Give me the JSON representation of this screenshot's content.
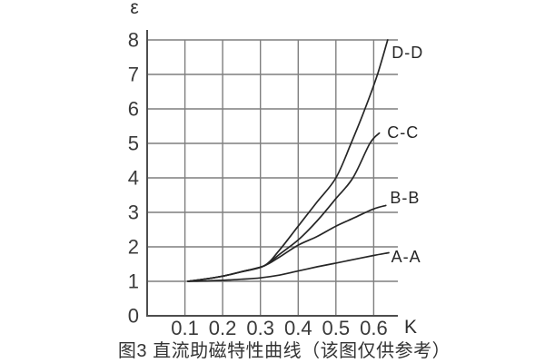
{
  "chart_data": {
    "type": "line",
    "title": "图3 直流助磁特性曲线（该图仅供参考）",
    "xlabel": "K",
    "ylabel": "ε",
    "x_ticks": [
      0.1,
      0.2,
      0.3,
      0.4,
      0.5,
      0.6
    ],
    "y_ticks": [
      0,
      1,
      2,
      3,
      4,
      5,
      6,
      7,
      8
    ],
    "xlim": [
      0,
      0.664
    ],
    "ylim": [
      0,
      8
    ],
    "grid": true,
    "legend_position": "right-of-curve-ends",
    "colors": {
      "background": "#ffffff",
      "grid": "#7f7f7f",
      "axis": "#4d4d4d",
      "curve": "#262626",
      "text": "#3a3a3a"
    },
    "series": [
      {
        "name": "D-D",
        "label_anchor": [
          0.69,
          7.63
        ],
        "points": [
          [
            0.108,
            1.0
          ],
          [
            0.15,
            1.06
          ],
          [
            0.2,
            1.15
          ],
          [
            0.25,
            1.28
          ],
          [
            0.31,
            1.45
          ],
          [
            0.35,
            1.9
          ],
          [
            0.4,
            2.6
          ],
          [
            0.45,
            3.3
          ],
          [
            0.5,
            4.0
          ],
          [
            0.54,
            5.0
          ],
          [
            0.577,
            6.0
          ],
          [
            0.61,
            7.0
          ],
          [
            0.637,
            8.0
          ]
        ]
      },
      {
        "name": "C-C",
        "label_anchor": [
          0.678,
          5.32
        ],
        "points": [
          [
            0.108,
            1.0
          ],
          [
            0.15,
            1.06
          ],
          [
            0.2,
            1.15
          ],
          [
            0.25,
            1.28
          ],
          [
            0.31,
            1.45
          ],
          [
            0.35,
            1.78
          ],
          [
            0.4,
            2.2
          ],
          [
            0.45,
            2.75
          ],
          [
            0.5,
            3.4
          ],
          [
            0.545,
            4.0
          ],
          [
            0.59,
            5.0
          ],
          [
            0.615,
            5.3
          ]
        ]
      },
      {
        "name": "B-B",
        "label_anchor": [
          0.683,
          3.42
        ],
        "points": [
          [
            0.108,
            1.0
          ],
          [
            0.15,
            1.06
          ],
          [
            0.2,
            1.15
          ],
          [
            0.25,
            1.28
          ],
          [
            0.31,
            1.45
          ],
          [
            0.35,
            1.7
          ],
          [
            0.4,
            2.05
          ],
          [
            0.45,
            2.3
          ],
          [
            0.5,
            2.6
          ],
          [
            0.55,
            2.85
          ],
          [
            0.6,
            3.1
          ],
          [
            0.632,
            3.2
          ]
        ]
      },
      {
        "name": "A-A",
        "label_anchor": [
          0.686,
          1.71
        ],
        "points": [
          [
            0.108,
            1.0
          ],
          [
            0.15,
            1.01
          ],
          [
            0.2,
            1.03
          ],
          [
            0.25,
            1.06
          ],
          [
            0.3,
            1.1
          ],
          [
            0.35,
            1.18
          ],
          [
            0.4,
            1.3
          ],
          [
            0.45,
            1.42
          ],
          [
            0.5,
            1.53
          ],
          [
            0.55,
            1.64
          ],
          [
            0.6,
            1.75
          ],
          [
            0.64,
            1.83
          ]
        ]
      }
    ]
  }
}
